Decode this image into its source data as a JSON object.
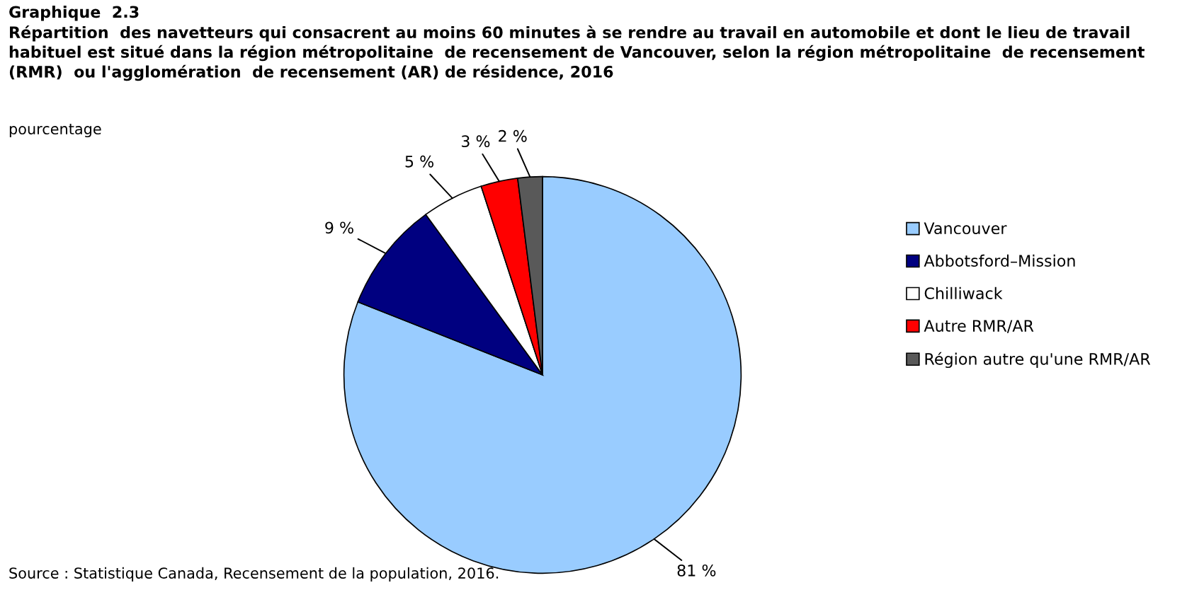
{
  "chart_data": {
    "type": "pie",
    "title": "Graphique  2.3",
    "subtitle": "Répartition  des navetteurs qui consacrent au moins 60 minutes à se rendre au travail en automobile et dont le lieu de travail habituel est situé dans la région métropolitaine  de recensement de Vancouver, selon la région métropolitaine  de recensement (RMR)  ou l'agglomération  de recensement (AR) de résidence, 2016",
    "categories": [
      "Vancouver",
      "Abbotsford–Mission",
      "Chilliwack",
      "Autre RMR/AR",
      "Région autre qu'une RMR/AR"
    ],
    "values": [
      81,
      9,
      5,
      3,
      2
    ],
    "colors": [
      "#99ccff",
      "#000080",
      "#ffffff",
      "#ff0000",
      "#595959"
    ],
    "value_labels": [
      "81 %",
      "9 %",
      "5 %",
      "3 %",
      "2 %"
    ],
    "legend": "right",
    "annotations": [
      "pourcentage",
      "Source : Statistique Canada, Recensement de la population, 2016."
    ]
  }
}
